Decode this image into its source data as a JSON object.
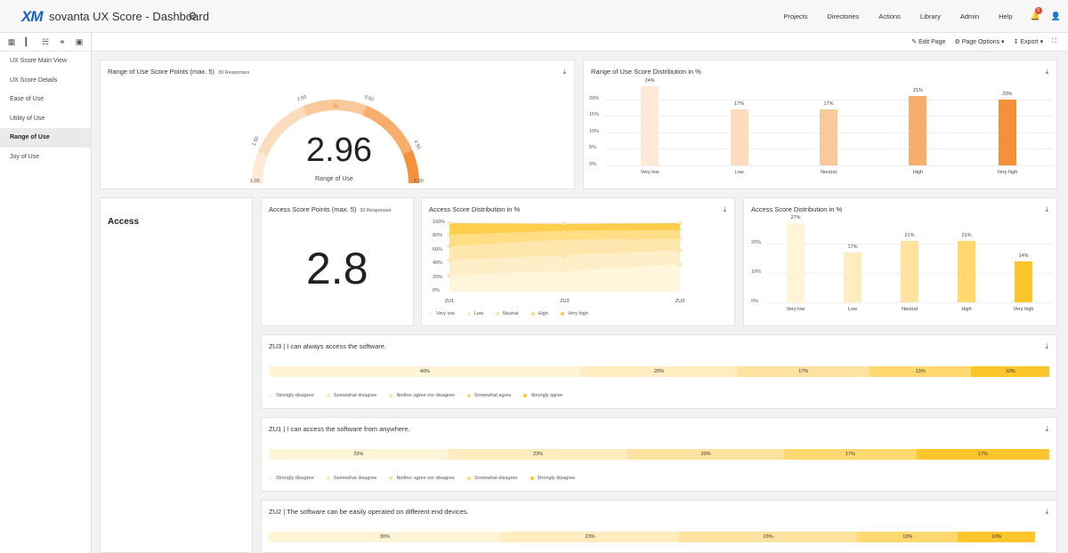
{
  "app": {
    "logo": "XM",
    "title": "sovanta UX Score  - Dashboard",
    "gear": "⚙"
  },
  "topnav": [
    "Projects",
    "Directories",
    "Actions",
    "Library",
    "Admin",
    "Help"
  ],
  "notification": {
    "icon": "bell-icon",
    "count": "9"
  },
  "sidebar": {
    "items": [
      {
        "label": "UX Score Main View"
      },
      {
        "label": "UX Score Details"
      },
      {
        "label": "Ease of Use"
      },
      {
        "label": "Utility of Use"
      },
      {
        "label": "Range of Use"
      },
      {
        "label": "Joy of Use"
      }
    ],
    "active": "Range of Use"
  },
  "toolbar": {
    "edit_page": "Edit Page",
    "page_options": "Page Options",
    "export": "Export"
  },
  "colors": {
    "orange_scale": [
      "#fde9d6",
      "#fbdcbd",
      "#f9c99b",
      "#f7ae6c",
      "#f3913a"
    ],
    "yellow_scale": [
      "#fff4d6",
      "#ffecbf",
      "#ffe29f",
      "#ffd870",
      "#fbc52c"
    ]
  },
  "range_gauge": {
    "title": "Range of Use Score Points (max. 5)",
    "responses": "30 Responses",
    "value": "2.96",
    "label": "Range of Use",
    "ticks": [
      "1.00",
      "1.50",
      "2.50",
      "3.50",
      "4.50",
      "5.00"
    ]
  },
  "range_dist": {
    "title": "Range of Use Score Distribution in %",
    "chart_data": {
      "type": "bar",
      "categories": [
        "Very low",
        "Low",
        "Neutral",
        "High",
        "Very high"
      ],
      "values": [
        24,
        17,
        17,
        21,
        20
      ],
      "value_labels": [
        "24%",
        "17%",
        "17%",
        "21%",
        "20%"
      ],
      "yticks": [
        "0%",
        "5%",
        "10%",
        "15%",
        "20%"
      ],
      "ylim": [
        0,
        25
      ]
    }
  },
  "access": {
    "section": "Access",
    "score_title": "Access Score Points (max. 5)",
    "responses": "30 Responses",
    "score": "2.8"
  },
  "access_area": {
    "title": "Access Score Distribution in %",
    "chart_data": {
      "type": "area",
      "x": [
        "ZU1",
        "ZU2",
        "ZU3"
      ],
      "yticks": [
        "0%",
        "20%",
        "40%",
        "60%",
        "80%",
        "100%"
      ],
      "ylim": [
        0,
        100
      ],
      "series": [
        {
          "name": "Very low",
          "values": [
            23,
            30,
            40
          ]
        },
        {
          "name": "Low",
          "values": [
            23,
            23,
            20
          ]
        },
        {
          "name": "Neutral",
          "values": [
            20,
            23,
            17
          ]
        },
        {
          "name": "High",
          "values": [
            17,
            13,
            13
          ]
        },
        {
          "name": "Very high",
          "values": [
            17,
            10,
            10
          ]
        }
      ]
    }
  },
  "access_bar": {
    "title": "Access Score Distribution in %",
    "chart_data": {
      "type": "bar",
      "categories": [
        "Very low",
        "Low",
        "Neutral",
        "High",
        "Very high"
      ],
      "values": [
        27,
        17,
        21,
        21,
        14
      ],
      "value_labels": [
        "27%",
        "17%",
        "21%",
        "21%",
        "14%"
      ],
      "yticks": [
        "0%",
        "10%",
        "20%"
      ],
      "ylim": [
        0,
        28
      ]
    }
  },
  "questions": [
    {
      "title": "ZU3 | I can always access the software.",
      "segments": [
        40,
        20,
        17,
        13,
        10
      ],
      "labels": [
        "40%",
        "20%",
        "17%",
        "13%",
        "10%"
      ],
      "legend": [
        "Strongly disagree",
        "Somewhat disagree",
        "Neither agree nor disagree",
        "Somewhat agree",
        "Strongly agree"
      ]
    },
    {
      "title": "ZU1 | I can access the software from anywhere.",
      "segments": [
        23,
        23,
        20,
        17,
        17
      ],
      "labels": [
        "23%",
        "23%",
        "20%",
        "17%",
        "17%"
      ],
      "legend": [
        "Strongly disagree",
        "Somewhat disagree",
        "Neither agree nor disagree",
        "Somewhat disagree",
        "Strongly disagree"
      ]
    },
    {
      "title": "ZU2 | The software can be easily operated on different end devices.",
      "segments": [
        30,
        23,
        23,
        13,
        10
      ],
      "labels": [
        "30%",
        "23%",
        "23%",
        "13%",
        "10%"
      ],
      "legend": []
    }
  ]
}
